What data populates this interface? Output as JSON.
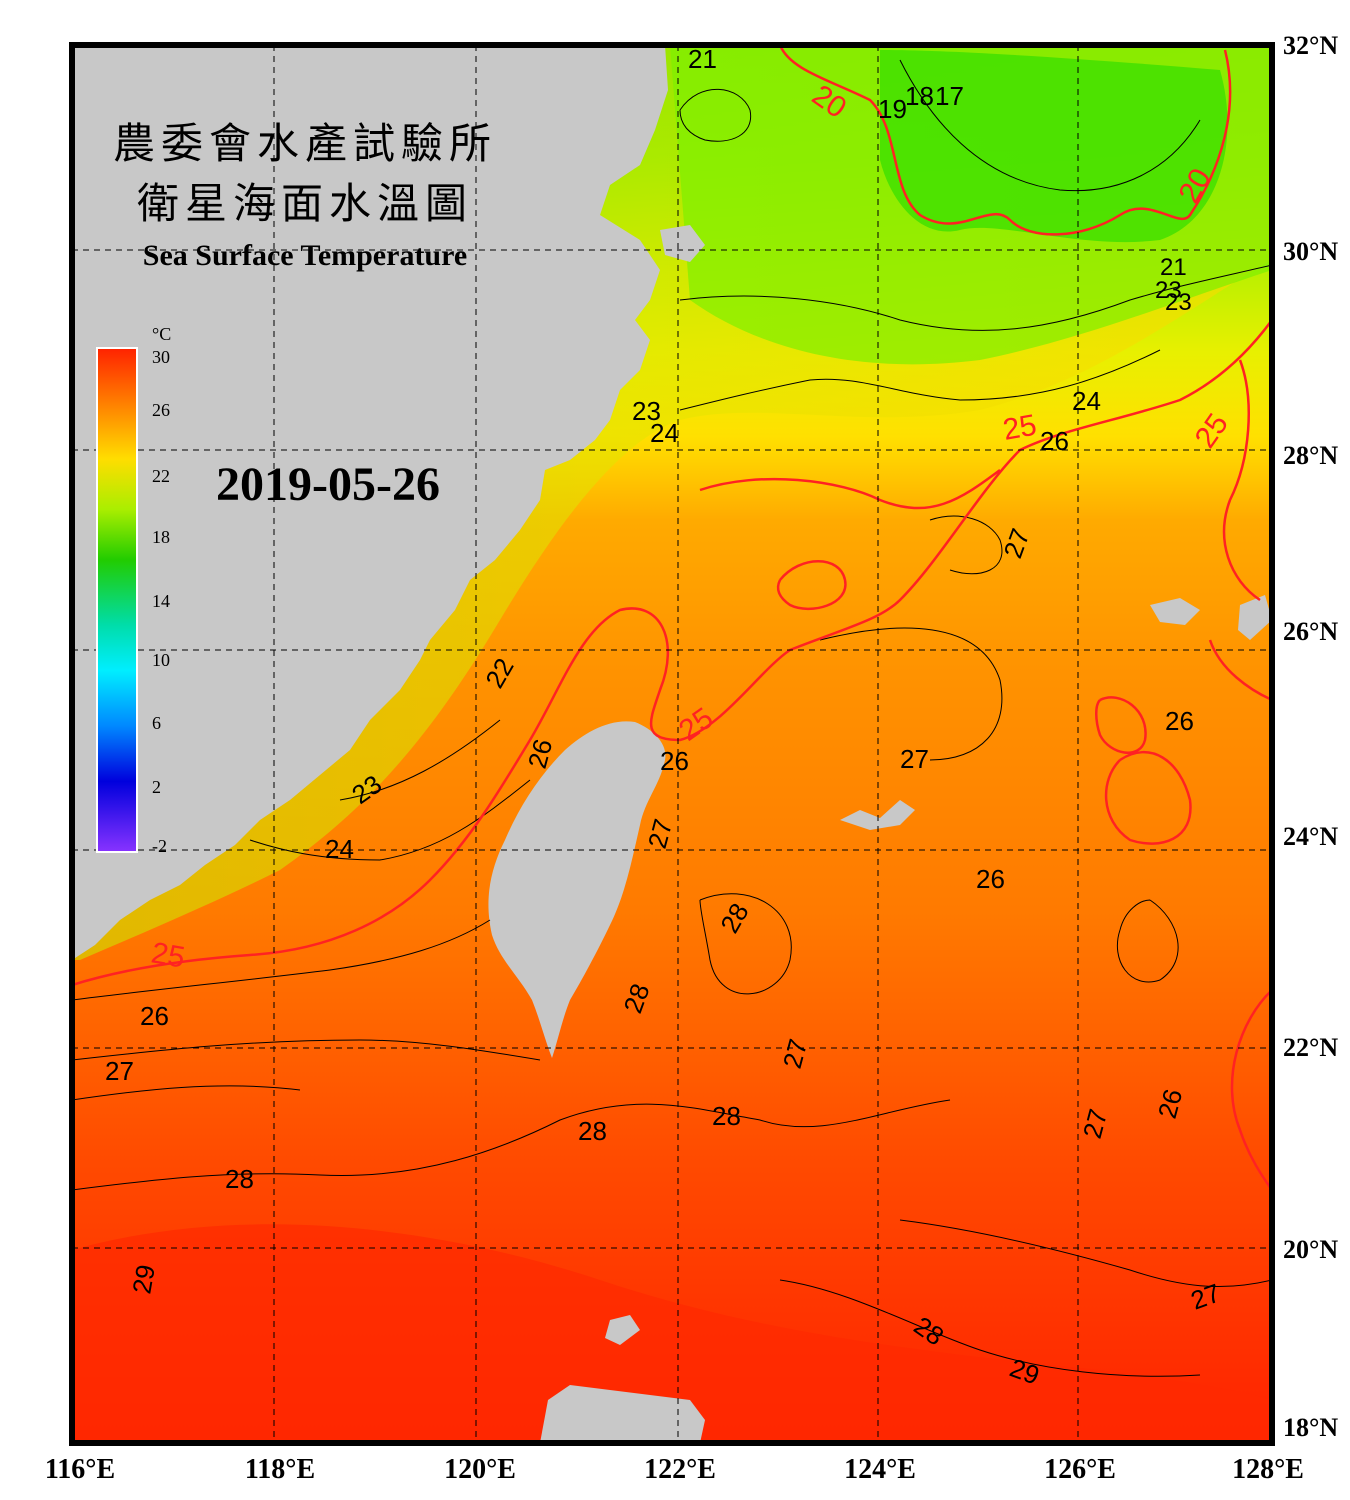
{
  "title": {
    "zh_line1": "農委會水產試驗所",
    "zh_line2": "衛星海面水溫圖",
    "en": "Sea Surface Temperature"
  },
  "date": "2019-05-26",
  "colorbar": {
    "unit": "°C",
    "ticks": [
      "30",
      "26",
      "22",
      "18",
      "14",
      "10",
      "6",
      "2",
      "-2"
    ]
  },
  "axes": {
    "longitude_labels": [
      "116°E",
      "118°E",
      "120°E",
      "122°E",
      "124°E",
      "126°E",
      "128°E"
    ],
    "latitude_labels": [
      "32°N",
      "30°N",
      "28°N",
      "26°N",
      "24°N",
      "22°N",
      "20°N",
      "18°N"
    ]
  },
  "contour_labels": {
    "c17": "17",
    "c18": "18",
    "c19": "19",
    "c20a": "20",
    "c20b": "20",
    "c21a": "21",
    "c21b": "21",
    "c22": "22",
    "c23a": "23",
    "c23b": "23",
    "c23c": "23",
    "c24a": "24",
    "c24b": "24",
    "c24c": "24",
    "c25a": "25",
    "c25b": "25",
    "c25c": "25",
    "c25d": "25",
    "c26a": "26",
    "c26b": "26",
    "c26c": "26",
    "c26d": "26",
    "c26e": "26",
    "c26f": "26",
    "c26g": "26",
    "c27a": "27",
    "c27b": "27",
    "c27c": "27",
    "c27d": "27",
    "c27e": "27",
    "c27f": "27",
    "c27g": "27",
    "c28a": "28",
    "c28b": "28",
    "c28c": "28",
    "c28d": "28",
    "c28e": "28",
    "c28f": "28",
    "c29a": "29",
    "c29b": "29"
  },
  "colors": {
    "land": "#c8c8c8",
    "frame": "#000000",
    "warm": "#ff3300",
    "mid": "#ffcc00",
    "cool": "#66ff00",
    "contour_main": "#ff2222"
  }
}
